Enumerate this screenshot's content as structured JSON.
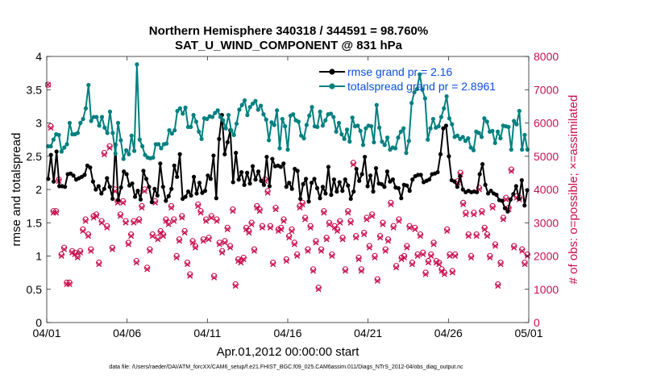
{
  "chart_data": {
    "type": "line",
    "title": "Northern Hemisphere 340318 / 344591 = 98.760%",
    "subtitle": "SAT_U_WIND_COMPONENT @ 831 hPa",
    "xlabel": "Apr.01,2012 00:00:00 start",
    "ylabel": "rmse and totalspread",
    "ylabel_right": "# of obs: o=possible; ×=assimilated",
    "footnote": "data file: /Users/raeder/DAI/ATM_forcXX/CAM6_setup/f.e21.FHIST_BGC.f09_025.CAM6assim.011/Diags_NTrS_2012-04/obs_diag_output.nc",
    "xlim": [
      0,
      30
    ],
    "ylim": [
      0,
      4
    ],
    "ylim_right": [
      0,
      8000
    ],
    "x_ticks": [
      0,
      5,
      10,
      15,
      20,
      25,
      30
    ],
    "x_tick_labels": [
      "04/01",
      "04/06",
      "04/11",
      "04/16",
      "04/21",
      "04/26",
      "05/01"
    ],
    "y_ticks": [
      0,
      0.5,
      1,
      1.5,
      2,
      2.5,
      3,
      3.5,
      4
    ],
    "y_tick_labels": [
      "0",
      "0.5",
      "1",
      "1.5",
      "2",
      "2.5",
      "3",
      "3.5",
      "4"
    ],
    "y_right_ticks": [
      0,
      1000,
      2000,
      3000,
      4000,
      5000,
      6000,
      7000,
      8000
    ],
    "y_right_tick_labels": [
      "0",
      "1000",
      "2000",
      "3000",
      "4000",
      "5000",
      "6000",
      "7000",
      "8000"
    ],
    "legend": [
      {
        "label": "rmse grand pr = 2.16",
        "color": "#000000"
      },
      {
        "label": "totalspread grand pr = 2.8961",
        "color": "#00807f"
      }
    ],
    "series": [
      {
        "name": "rmse",
        "color": "#000000",
        "values": [
          2.16,
          2.52,
          2.12,
          2.57,
          2.05,
          2.05,
          2.04,
          2.23,
          2.24,
          2.21,
          2.15,
          2.17,
          2.19,
          2.22,
          2.36,
          2.33,
          2.12,
          2.0,
          2.05,
          1.94,
          2.01,
          2.17,
          2.04,
          1.86,
          2.67,
          1.84,
          2.03,
          2.27,
          2.23,
          2.06,
          2.09,
          1.89,
          1.98,
          1.85,
          2.28,
          2.16,
          2.04,
          1.81,
          2.01,
          1.91,
          2.39,
          2.04,
          1.83,
          1.9,
          2.01,
          2.36,
          2.19,
          2.53,
          1.86,
          1.89,
          1.97,
          1.91,
          2.19,
          1.94,
          2.1,
          1.95,
          1.98,
          2.21,
          2.16,
          2.51,
          1.87,
          2.76,
          3.12,
          2.53,
          2.71,
          2.89,
          2.11,
          2.55,
          2.15,
          2.26,
          2.07,
          2.25,
          2.09,
          2.35,
          2.15,
          2.27,
          2.13,
          2.07,
          2.49,
          2.05,
          2.46,
          2.35,
          2.36,
          2.34,
          2.39,
          2.04,
          2.1,
          2.01,
          2.31,
          2.28,
          1.86,
          2.08,
          2.16,
          1.82,
          2.1,
          2.16,
          2.02,
          1.87,
          2.04,
          1.94,
          2.34,
          1.92,
          2.15,
          1.97,
          2.11,
          1.98,
          2.15,
          2.06,
          1.86,
          1.97,
          2.31,
          2.13,
          2.23,
          2.49,
          2.05,
          2.21,
          1.97,
          2.32,
          2.09,
          2.08,
          2.04,
          2.27,
          2.12,
          2.15,
          2.03,
          2.02,
          1.87,
          2.07,
          2.06,
          1.98,
          2.15,
          2.2,
          2.22,
          2.22,
          2.11,
          2.13,
          2.15,
          2.23,
          2.24,
          2.26,
          2.53,
          2.92,
          2.96,
          2.5,
          2.14,
          2.12,
          2.04,
          2.2,
          2.0,
          1.96,
          1.98,
          1.96,
          1.97,
          1.96,
          2.23,
          2.38,
          2.07,
          1.94,
          1.98,
          1.94,
          1.92,
          1.84,
          1.83,
          1.72,
          1.67,
          1.85,
          1.93,
          2.05,
          1.86,
          2.14,
          1.76,
          1.99
        ]
      },
      {
        "name": "totalspread",
        "color": "#00807f",
        "values": [
          2.65,
          2.65,
          2.75,
          2.83,
          2.82,
          2.57,
          2.63,
          2.68,
          3.0,
          2.83,
          2.83,
          2.85,
          3.0,
          3.06,
          3.22,
          3.57,
          3.03,
          3.09,
          3.09,
          2.96,
          3.09,
          2.93,
          2.85,
          3.17,
          2.85,
          2.54,
          3.0,
          2.74,
          2.46,
          2.59,
          2.53,
          2.81,
          2.58,
          3.88,
          2.75,
          2.65,
          2.52,
          2.48,
          2.47,
          2.48,
          2.68,
          2.68,
          2.62,
          2.68,
          2.69,
          2.89,
          2.84,
          2.89,
          3.18,
          3.22,
          3.14,
          3.23,
          2.94,
          2.94,
          3.12,
          3.02,
          2.87,
          2.76,
          3.07,
          3.06,
          3.1,
          3.09,
          3.15,
          3.19,
          3.09,
          3.04,
          2.92,
          3.12,
          2.89,
          2.82,
          2.99,
          3.2,
          3.27,
          3.34,
          3.12,
          3.24,
          3.29,
          3.33,
          3.2,
          3.26,
          3.13,
          3.05,
          2.74,
          3.01,
          2.97,
          3.19,
          2.62,
          3.06,
          2.95,
          2.6,
          3.11,
          3.13,
          3.04,
          3.02,
          2.81,
          2.77,
          2.97,
          3.11,
          3.24,
          2.95,
          2.94,
          3.17,
          2.96,
          3.04,
          3.13,
          3.14,
          3.09,
          2.87,
          3.0,
          2.83,
          2.76,
          2.9,
          2.72,
          3.08,
          2.95,
          2.96,
          2.88,
          2.67,
          2.92,
          2.96,
          2.95,
          2.71,
          3.27,
          2.93,
          2.72,
          2.67,
          2.78,
          2.6,
          2.63,
          2.62,
          2.78,
          2.87,
          2.92,
          2.55,
          2.73,
          3.3,
          3.46,
          3.51,
          3.73,
          3.5,
          3.37,
          2.75,
          2.92,
          3.06,
          2.93,
          2.95,
          3.09,
          3.22,
          3.4,
          3.07,
          2.98,
          2.79,
          2.81,
          2.76,
          2.79,
          2.73,
          2.77,
          2.63,
          2.59,
          2.87,
          2.85,
          2.79,
          3.07,
          3.02,
          2.87,
          2.88,
          2.7,
          2.87,
          2.77,
          2.96,
          2.95,
          2.94,
          2.6,
          3.03,
          2.98,
          3.18,
          2.6,
          2.82,
          2.6
        ]
      }
    ],
    "obs_possible": [
      7150,
      5900,
      3350,
      3350,
      4300,
      2050,
      2250,
      1200,
      1200,
      2150,
      2100,
      2000,
      2150,
      2800,
      3100,
      2650,
      2200,
      3200,
      3250,
      1800,
      3050,
      5100,
      2900,
      5300,
      2250,
      4000,
      3650,
      3250,
      3650,
      3050,
      2400,
      2650,
      3050,
      1850,
      3100,
      3500,
      4000,
      1650,
      2200,
      2650,
      3650,
      2550,
      2750,
      2650,
      3100,
      3000,
      3500,
      3100,
      2000,
      2500,
      3200,
      2750,
      1800,
      1450,
      2450,
      2300,
      3550,
      3350,
      2500,
      3100,
      2550,
      3200,
      1400,
      3100,
      2400,
      2150,
      2450,
      2850,
      2300,
      3400,
      1150,
      1900,
      1850,
      1950,
      2850,
      2750,
      3000,
      2200,
      3500,
      3400,
      2900,
      4300,
      3950,
      2900,
      1800,
      3450,
      2800,
      2850,
      3100,
      1900,
      2600,
      2800,
      2400,
      2050,
      3500,
      3600,
      3150,
      2200,
      2900,
      1600,
      2450,
      1050,
      2200,
      3350,
      2550,
      3000,
      2050,
      2900,
      2800,
      3050,
      2550,
      1600,
      3350,
      3050,
      4800,
      2600,
      1950,
      1600,
      2700,
      3150,
      2300,
      3250,
      2000,
      1300,
      2600,
      3000,
      2200,
      2500,
      3600,
      2900,
      1700,
      3100,
      1950,
      2000,
      2300,
      2900,
      1800,
      2850,
      2050,
      2650,
      2100,
      1500,
      1850,
      2050,
      2400,
      1850,
      1800,
      1600,
      1500,
      2800,
      2050,
      1550,
      2050,
      4250,
      4500,
      3600,
      3300,
      2650,
      2000,
      3300,
      2650,
      4050,
      3350,
      2850,
      2650,
      2000,
      3500,
      2350,
      1150,
      1800,
      3150,
      3750,
      3450,
      4600,
      2300,
      3800,
      3750,
      2200,
      1800,
      2050
    ],
    "obs_assimilated": [
      7150,
      5850,
      3300,
      3300,
      4250,
      2000,
      2200,
      1150,
      1150,
      2100,
      2050,
      1950,
      2100,
      2750,
      3050,
      2600,
      2150,
      3150,
      3200,
      1750,
      3000,
      5050,
      2850,
      5250,
      2200,
      3950,
      3600,
      3200,
      3600,
      3000,
      2350,
      2600,
      3000,
      1800,
      3050,
      3450,
      3950,
      1600,
      2150,
      2600,
      3600,
      2500,
      2700,
      2600,
      3050,
      2950,
      3450,
      3050,
      1950,
      2450,
      3150,
      2700,
      1750,
      1400,
      2400,
      2250,
      3500,
      3300,
      2450,
      3050,
      2500,
      3150,
      1350,
      3050,
      2350,
      2100,
      2400,
      2800,
      2250,
      3350,
      1100,
      1850,
      1800,
      1900,
      2800,
      2700,
      2950,
      2150,
      3450,
      3350,
      2850,
      4250,
      3900,
      2850,
      1750,
      3400,
      2750,
      2800,
      3050,
      1850,
      2550,
      2750,
      2350,
      2000,
      3450,
      3550,
      3100,
      2150,
      2850,
      1550,
      2400,
      1000,
      2150,
      3300,
      2500,
      2950,
      2000,
      2850,
      2750,
      3000,
      2500,
      1550,
      3300,
      3000,
      4750,
      2550,
      1900,
      1550,
      2650,
      3100,
      2250,
      3200,
      1950,
      1250,
      2550,
      2950,
      2150,
      2450,
      3550,
      2850,
      1650,
      3050,
      1900,
      1950,
      2250,
      2850,
      1750,
      2800,
      2000,
      2600,
      2050,
      1450,
      1800,
      2000,
      2350,
      1800,
      1750,
      1550,
      1450,
      2750,
      2000,
      1500,
      2000,
      4200,
      4450,
      3550,
      3250,
      2600,
      1950,
      3250,
      2600,
      4000,
      3300,
      2800,
      2600,
      1950,
      3450,
      2300,
      1100,
      1750,
      3100,
      3700,
      3400,
      4550,
      2250,
      3750,
      3700,
      2150,
      1750,
      2000
    ]
  }
}
